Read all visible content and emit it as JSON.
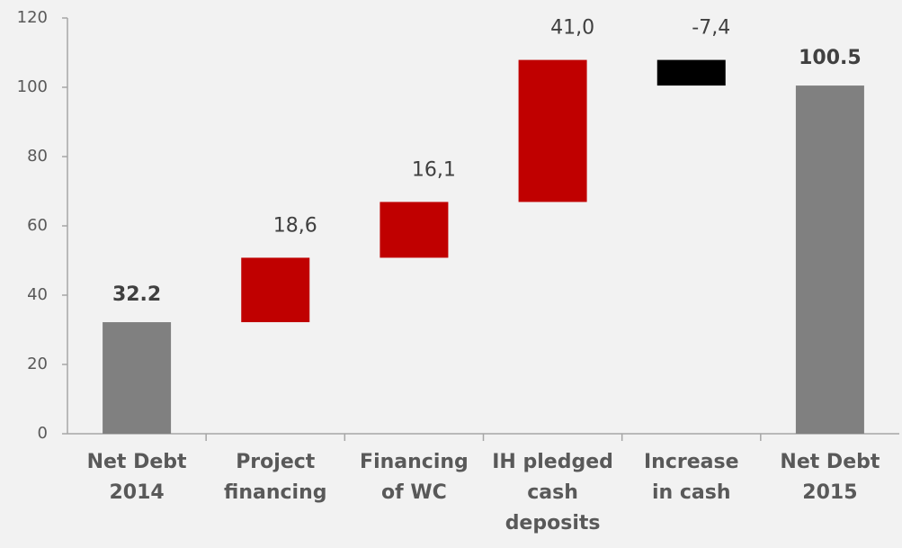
{
  "chart_data": {
    "type": "waterfall",
    "categories": [
      [
        "Net Debt",
        "2014"
      ],
      [
        "Project",
        "financing"
      ],
      [
        "Financing",
        "of WC"
      ],
      [
        "IH pledged",
        "cash",
        "deposits"
      ],
      [
        "Increase",
        "in cash"
      ],
      [
        "Net Debt",
        "2015"
      ]
    ],
    "values": [
      32.2,
      18.6,
      16.1,
      41.0,
      -7.4,
      100.5
    ],
    "value_labels": [
      "32.2",
      "18,6",
      "16,1",
      "41,0",
      "-7,4",
      "100.5"
    ],
    "measure": [
      "total",
      "relative",
      "relative",
      "relative",
      "relative",
      "total"
    ],
    "colors": [
      "#808080",
      "#c00000",
      "#c00000",
      "#c00000",
      "#000000",
      "#808080"
    ],
    "ylim": [
      0,
      120
    ],
    "yticks": [
      0,
      20,
      40,
      60,
      80,
      100,
      120
    ]
  }
}
